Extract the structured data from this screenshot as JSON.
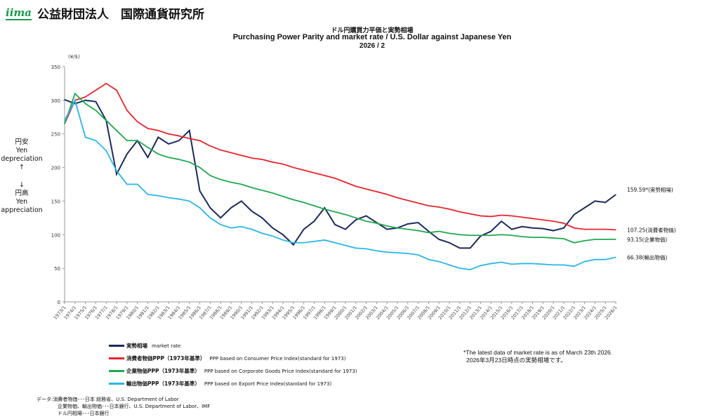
{
  "header": {
    "logo": "iima",
    "org": "公益財団法人　国際通貨研究所"
  },
  "chart_data": {
    "type": "line",
    "title_ja": "ドル円購買力平価と実勢相場",
    "title": "Purchasing Power Parity and market rate / U.S. Dollar against Japanese Yen",
    "subtitle": "2026 / 2",
    "ylabel": "(¥/$)",
    "ylim": [
      0,
      350
    ],
    "yticks": [
      0,
      50,
      100,
      150,
      200,
      250,
      300,
      350
    ],
    "side_labels": {
      "up": [
        "円安",
        "Yen",
        "depreciation",
        "↑"
      ],
      "down": [
        "↓",
        "円高",
        "Yen",
        "appreciation"
      ]
    },
    "categories": [
      "1973/1",
      "1974/1",
      "1975/1",
      "1976/1",
      "1977/1",
      "1978/1",
      "1979/1",
      "1980/1",
      "1981/1",
      "1982/1",
      "1983/1",
      "1984/1",
      "1985/1",
      "1986/1",
      "1987/1",
      "1988/1",
      "1989/1",
      "1990/1",
      "1991/1",
      "1992/1",
      "1993/1",
      "1994/1",
      "1995/1",
      "1996/1",
      "1997/1",
      "1998/1",
      "1999/1",
      "2000/1",
      "2001/1",
      "2002/1",
      "2003/1",
      "2004/1",
      "2005/1",
      "2006/1",
      "2007/1",
      "2008/1",
      "2009/1",
      "2010/1",
      "2011/1",
      "2012/1",
      "2013/1",
      "2014/1",
      "2015/1",
      "2016/1",
      "2017/1",
      "2018/1",
      "2019/1",
      "2020/1",
      "2021/1",
      "2022/1",
      "2023/1",
      "2024/1",
      "2025/1",
      "2026/1"
    ],
    "series": [
      {
        "name": "実勢相場　market rate",
        "color": "#1b2a5e",
        "end_label": "159.59*(実勢相場)",
        "values": [
          301,
          295,
          300,
          298,
          270,
          190,
          220,
          240,
          215,
          245,
          235,
          240,
          255,
          165,
          140,
          125,
          140,
          150,
          135,
          125,
          110,
          100,
          85,
          108,
          120,
          140,
          115,
          108,
          122,
          128,
          118,
          108,
          110,
          116,
          118,
          105,
          93,
          88,
          80,
          80,
          98,
          105,
          120,
          108,
          112,
          110,
          109,
          106,
          110,
          130,
          140,
          150,
          148,
          159.59
        ]
      },
      {
        "name": "消費者物価PPP（1973年基準）　PPP based on Consumer Price Index(standard for 1973)",
        "color": "#e8242a",
        "end_label": "107.25(消費者物価)",
        "values": [
          265,
          300,
          305,
          315,
          325,
          315,
          285,
          268,
          258,
          255,
          250,
          247,
          243,
          240,
          232,
          226,
          222,
          218,
          214,
          212,
          208,
          205,
          200,
          196,
          192,
          188,
          184,
          178,
          172,
          168,
          164,
          160,
          155,
          151,
          147,
          143,
          141,
          138,
          134,
          131,
          128,
          127,
          129,
          128,
          126,
          124,
          122,
          120,
          117,
          110,
          108,
          108,
          108,
          107.25
        ]
      },
      {
        "name": "企業物価PPP（1973年基準）　PPP based on Corporate Goods Price Index(standard for 1973)",
        "color": "#1fa84f",
        "end_label": "93.15(企業物価)",
        "values": [
          265,
          310,
          295,
          285,
          270,
          255,
          240,
          240,
          230,
          220,
          215,
          212,
          208,
          200,
          188,
          182,
          178,
          175,
          170,
          166,
          162,
          157,
          152,
          148,
          143,
          138,
          134,
          130,
          125,
          120,
          117,
          113,
          110,
          108,
          106,
          103,
          105,
          102,
          100,
          99,
          99,
          99,
          100,
          99,
          97,
          96,
          96,
          95,
          94,
          88,
          91,
          93,
          93,
          93.15
        ]
      },
      {
        "name": "輸出物価PPP（1973年基準）　PPP based on Export Price Index(standard for 1973)",
        "color": "#29b6e8",
        "end_label": "66.38(輸出物価)",
        "values": [
          270,
          300,
          245,
          240,
          225,
          195,
          175,
          175,
          160,
          158,
          155,
          153,
          150,
          140,
          125,
          115,
          110,
          112,
          108,
          102,
          98,
          92,
          88,
          88,
          90,
          92,
          88,
          84,
          80,
          79,
          76,
          74,
          73,
          72,
          70,
          63,
          60,
          55,
          50,
          48,
          54,
          57,
          59,
          56,
          57,
          57,
          56,
          55,
          55,
          53,
          60,
          63,
          63,
          66.38
        ]
      }
    ]
  },
  "legend": [
    {
      "ja": "実勢相場",
      "en": "market rate"
    },
    {
      "ja": "消費者物価PPP（1973年基準）",
      "en": "PPP based on Consumer Price Index(standard for 1973)"
    },
    {
      "ja": "企業物価PPP（1973年基準）",
      "en": "PPP based on Corporate Goods Price Index(standard for 1973)"
    },
    {
      "ja": "輸出物価PPP（1973年基準）",
      "en": "PPP based on Export Price Index(standard for 1973)"
    }
  ],
  "note": [
    "*The latest data of market rate is as of March 23th 2026.",
    "2026年3月23日時点の実勢相場です。"
  ],
  "source": [
    "データ:消費者物価･･･日本 総務省、U.S. Department of Labor",
    "企業物価、輸出物価･･･日本銀行、U.S. Department of Labor、IMF",
    "ドル円相場･･･日本銀行"
  ]
}
